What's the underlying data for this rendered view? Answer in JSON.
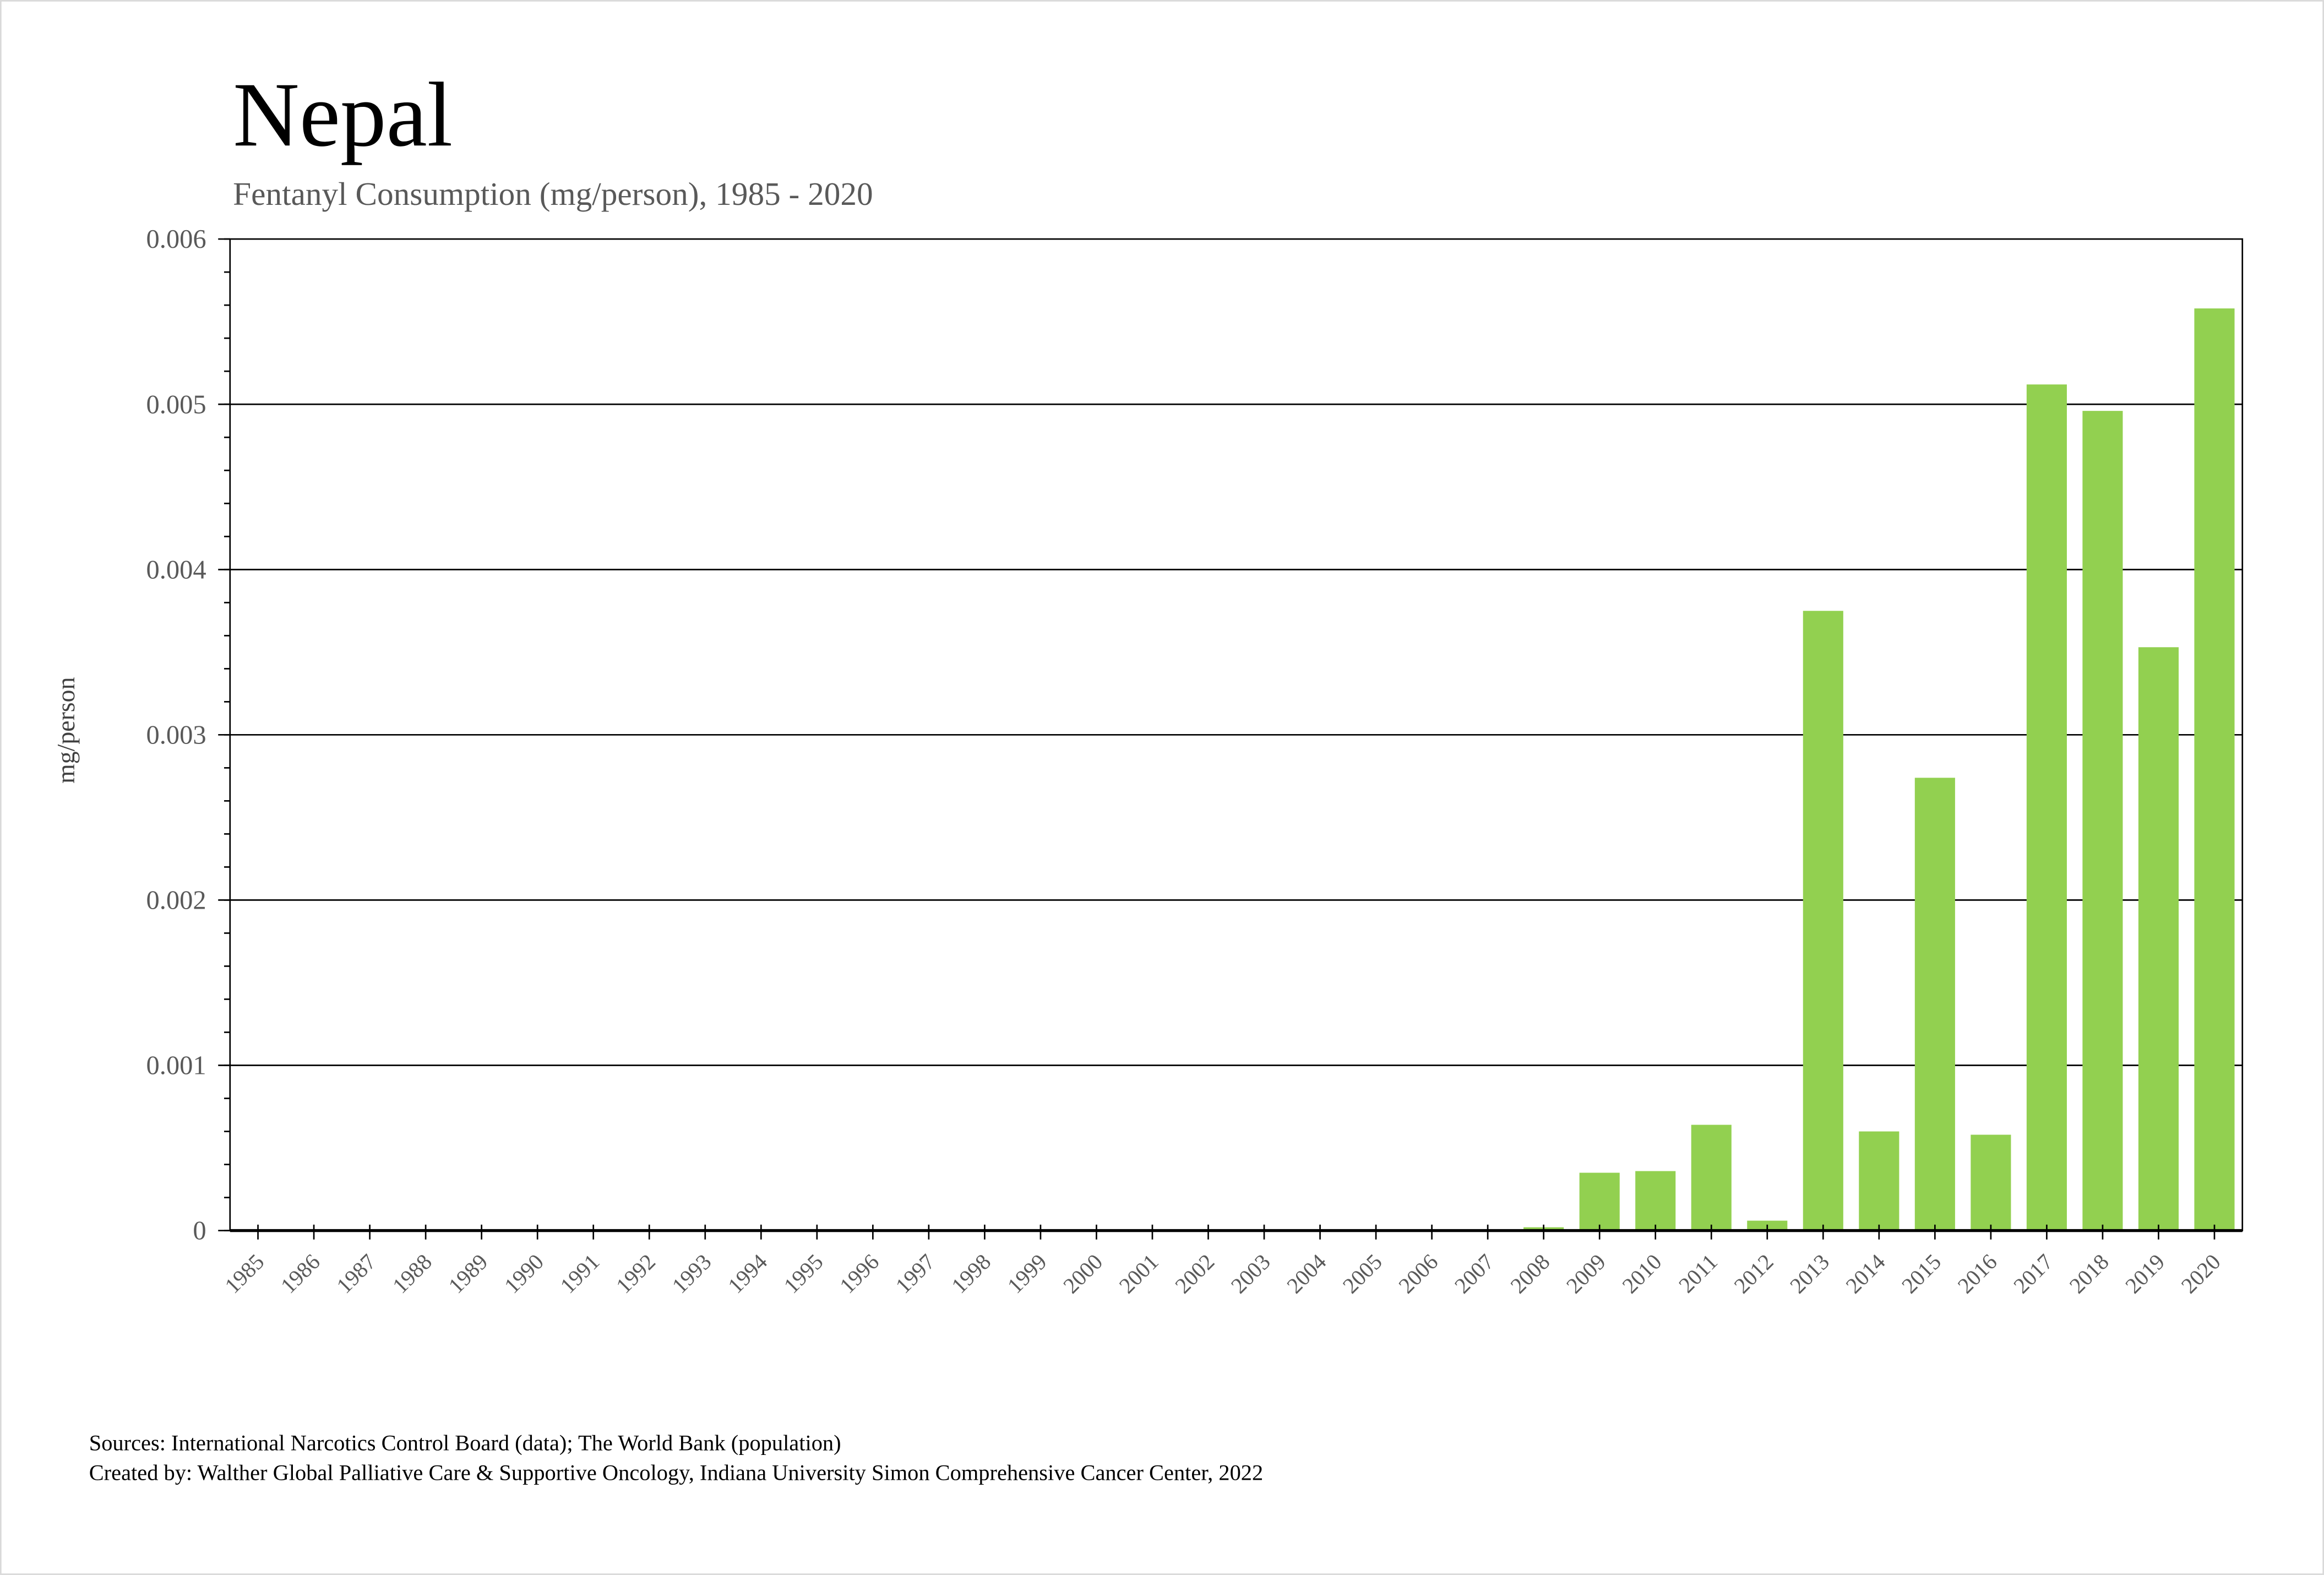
{
  "chart_data": {
    "type": "bar",
    "title": "Nepal",
    "subtitle": "Fentanyl Consumption (mg/person), 1985 - 2020",
    "xlabel": "",
    "ylabel": "mg/person",
    "ylim": [
      0,
      0.006
    ],
    "yticks": [
      "0",
      "0.001",
      "0.002",
      "0.003",
      "0.004",
      "0.005",
      "0.006"
    ],
    "grid": true,
    "bar_color": "#92d050",
    "categories": [
      "1985",
      "1986",
      "1987",
      "1988",
      "1989",
      "1990",
      "1991",
      "1992",
      "1993",
      "1994",
      "1995",
      "1996",
      "1997",
      "1998",
      "1999",
      "2000",
      "2001",
      "2002",
      "2003",
      "2004",
      "2005",
      "2006",
      "2007",
      "2008",
      "2009",
      "2010",
      "2011",
      "2012",
      "2013",
      "2014",
      "2015",
      "2016",
      "2017",
      "2018",
      "2019",
      "2020"
    ],
    "values": [
      0,
      0,
      0,
      0,
      0,
      0,
      0,
      0,
      0,
      0,
      0,
      0,
      0,
      0,
      0,
      0,
      0,
      0,
      0,
      5e-06,
      5e-06,
      0,
      5e-06,
      2e-05,
      0.00035,
      0.00036,
      0.00064,
      6e-05,
      0.00375,
      0.0006,
      0.00274,
      0.00058,
      0.00512,
      0.00496,
      0.00353,
      0.00558
    ]
  },
  "footer": {
    "sources": "Sources: International Narcotics Control Board (data); The World Bank (population)",
    "created_by": "Created by: Walther Global Palliative Care & Supportive Oncology, Indiana University Simon Comprehensive Cancer Center, 2022"
  }
}
